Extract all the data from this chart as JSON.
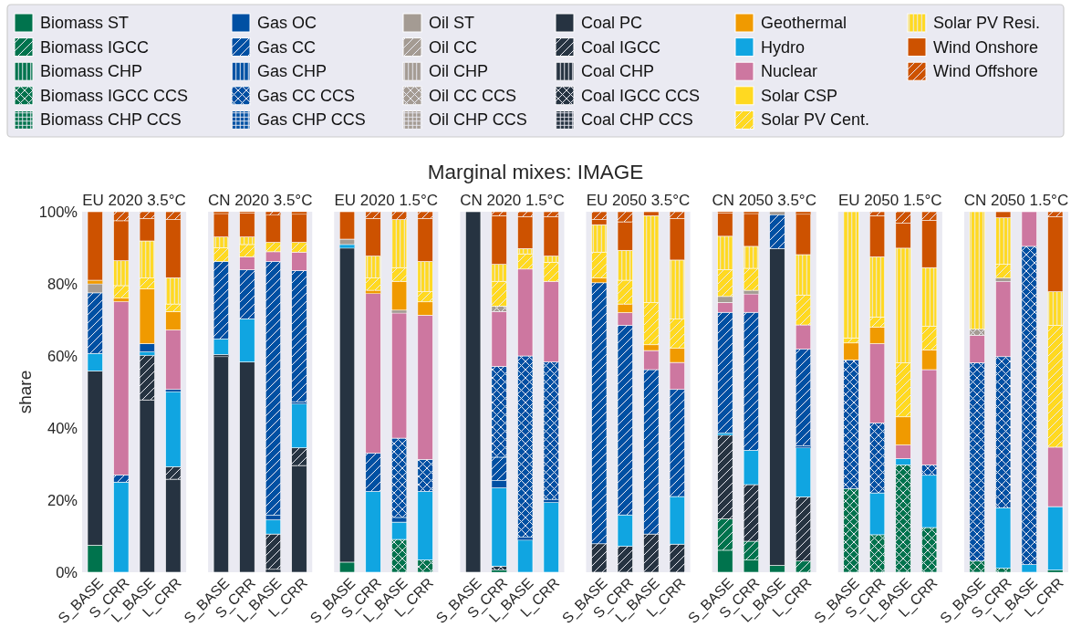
{
  "chart_data": [
    {
      "type": "bar",
      "stacked": true,
      "title": "EU 2020 3.5°C",
      "annotations": [
        "Marginal mixes: IMAGE"
      ],
      "ylabel": "share",
      "legend": "top",
      "categories": [
        "S_BASE",
        "S_CRR",
        "L_BASE",
        "L_CRR"
      ],
      "ylim": [
        0,
        100
      ],
      "yticks": [
        {
          "value": 0,
          "label": "0%"
        },
        {
          "value": 20,
          "label": "20%"
        },
        {
          "value": 40,
          "label": "40%"
        },
        {
          "value": 60,
          "label": "60%"
        },
        {
          "value": 80,
          "label": "80%"
        },
        {
          "value": 100,
          "label": "100%"
        }
      ],
      "series": [
        {
          "name": "Biomass ST",
          "color": "#00734d",
          "values": [
            7.5,
            0,
            0,
            0
          ]
        },
        {
          "name": "Biomass CHP",
          "color": "#00734d",
          "values": [
            0,
            0,
            0,
            0
          ]
        },
        {
          "name": "Biomass CHP CCS",
          "color": "#00734d",
          "values": [
            0,
            0,
            0,
            0
          ]
        },
        {
          "name": "Coal PC",
          "color": "#263341",
          "values": [
            48.3,
            0,
            47.8,
            25.8
          ]
        },
        {
          "name": "Coal IGCC",
          "color": "#263341",
          "values": [
            0,
            0,
            12.4,
            3.5
          ]
        },
        {
          "name": "Coal CHP",
          "color": "#263341",
          "values": [
            0,
            0,
            0,
            0
          ]
        },
        {
          "name": "Coal CHP CCS",
          "color": "#263341",
          "values": [
            0,
            0,
            0,
            0
          ]
        },
        {
          "name": "Hydro",
          "color": "#10a5e1",
          "values": [
            4.9,
            25,
            0.9,
            20.8
          ]
        },
        {
          "name": "Gas OC",
          "color": "#0050a3",
          "values": [
            0,
            0,
            2.3,
            0.6
          ]
        },
        {
          "name": "Gas CC",
          "color": "#0050a3",
          "values": [
            16.8,
            2,
            0,
            0
          ]
        },
        {
          "name": "Gas CHP",
          "color": "#0050a3",
          "values": [
            0,
            0,
            0,
            0
          ]
        },
        {
          "name": "Gas CHP CCS",
          "color": "#0050a3",
          "values": [
            0,
            0,
            0,
            0
          ]
        },
        {
          "name": "Nuclear",
          "color": "#cd77a0",
          "values": [
            0,
            48.1,
            0,
            16.5
          ]
        },
        {
          "name": "Oil ST",
          "color": "#a49b93",
          "values": [
            2.5,
            0,
            0,
            0
          ]
        },
        {
          "name": "Oil CC",
          "color": "#a49b93",
          "values": [
            0,
            0,
            0,
            0
          ]
        },
        {
          "name": "Oil CHP",
          "color": "#a49b93",
          "values": [
            0,
            0,
            0,
            0
          ]
        },
        {
          "name": "Oil CHP CCS",
          "color": "#a49b93",
          "values": [
            0,
            0,
            0,
            0
          ]
        },
        {
          "name": "Geothermal",
          "color": "#f09a00",
          "values": [
            1,
            1,
            15.2,
            5.1
          ]
        },
        {
          "name": "Solar CSP",
          "color": "#ffd921",
          "values": [
            0,
            0,
            0,
            0
          ]
        },
        {
          "name": "Solar PV Cent.",
          "color": "#ffd921",
          "values": [
            0,
            3.4,
            3,
            2.1
          ]
        },
        {
          "name": "Solar PV Resi.",
          "color": "#ffd921",
          "values": [
            0,
            6.9,
            10.3,
            7.3
          ]
        },
        {
          "name": "Wind Onshore",
          "color": "#cd5200",
          "values": [
            19,
            11.1,
            6.2,
            16.1
          ]
        },
        {
          "name": "Wind Offshore",
          "color": "#cd5200",
          "values": [
            0,
            2.5,
            1.9,
            2.2
          ]
        }
      ]
    },
    {
      "type": "bar",
      "stacked": true,
      "title": "CN 2020 3.5°C",
      "legend": "top",
      "tick_labels": "x",
      "categories": [
        "S_BASE",
        "S_CRR",
        "L_BASE",
        "L_CRR"
      ],
      "ylim": [
        0,
        100
      ],
      "series": [
        {
          "name": "Coal PC",
          "color": "#263341",
          "values": [
            59.8,
            58.3,
            0.8,
            29.6
          ]
        },
        {
          "name": "Coal IGCC",
          "color": "#263341",
          "values": [
            0.6,
            0,
            9.8,
            4.9
          ]
        },
        {
          "name": "Hydro",
          "color": "#10a5e1",
          "values": [
            4.3,
            12,
            3.9,
            12.2
          ]
        },
        {
          "name": "Gas OC",
          "color": "#0050a3",
          "values": [
            0,
            0,
            1.3,
            0.6
          ]
        },
        {
          "name": "Gas CC",
          "color": "#0050a3",
          "values": [
            21.5,
            13.6,
            70.4,
            36.4
          ]
        },
        {
          "name": "Nuclear",
          "color": "#cd77a0",
          "values": [
            0,
            3.6,
            2.7,
            5.1
          ]
        },
        {
          "name": "Solar PV Cent.",
          "color": "#ffd921",
          "values": [
            3.8,
            3.4,
            2.6,
            2.7
          ]
        },
        {
          "name": "Solar PV Resi.",
          "color": "#ffd921",
          "values": [
            3,
            2.1,
            0,
            0
          ]
        },
        {
          "name": "Wind Onshore",
          "color": "#cd5200",
          "values": [
            6.5,
            6.7,
            7.6,
            7.8
          ]
        },
        {
          "name": "Wind Offshore",
          "color": "#cd5200",
          "values": [
            0.5,
            0.3,
            0.9,
            0.7
          ]
        }
      ]
    },
    {
      "type": "bar",
      "stacked": true,
      "title": "EU 2020 1.5°C",
      "legend": "top",
      "tick_labels": "x",
      "categories": [
        "S_BASE",
        "S_CRR",
        "L_BASE",
        "L_CRR"
      ],
      "ylim": [
        0,
        100
      ],
      "series": [
        {
          "name": "Biomass ST",
          "color": "#00734d",
          "values": [
            2.8,
            0,
            0,
            0
          ]
        },
        {
          "name": "Biomass IGCC CCS",
          "color": "#00734d",
          "values": [
            0,
            0,
            9.1,
            3.4
          ]
        },
        {
          "name": "Coal PC",
          "color": "#263341",
          "values": [
            87.1,
            0,
            0,
            0
          ]
        },
        {
          "name": "Hydro",
          "color": "#10a5e1",
          "values": [
            1,
            22.4,
            4.8,
            19
          ]
        },
        {
          "name": "Gas OC",
          "color": "#0050a3",
          "values": [
            0,
            0,
            1.3,
            0
          ]
        },
        {
          "name": "Gas CC",
          "color": "#0050a3",
          "values": [
            0,
            10.6,
            0,
            0
          ]
        },
        {
          "name": "Gas CC CCS",
          "color": "#0050a3",
          "values": [
            0,
            0,
            22,
            8.9
          ]
        },
        {
          "name": "Nuclear",
          "color": "#cd77a0",
          "values": [
            0,
            44.3,
            34.7,
            40
          ]
        },
        {
          "name": "Oil ST",
          "color": "#a49b93",
          "values": [
            1.5,
            0,
            0.8,
            0
          ]
        },
        {
          "name": "Geothermal",
          "color": "#f09a00",
          "values": [
            0,
            0.9,
            8,
            3.7
          ]
        },
        {
          "name": "Solar PV Cent.",
          "color": "#ffd921",
          "values": [
            0,
            3.4,
            3.8,
            2.8
          ]
        },
        {
          "name": "Solar PV Resi.",
          "color": "#ffd921",
          "values": [
            0,
            6.1,
            13.3,
            8.4
          ]
        },
        {
          "name": "Wind Onshore",
          "color": "#cd5200",
          "values": [
            7.6,
            10.4,
            0,
            11.9
          ]
        },
        {
          "name": "Wind Offshore",
          "color": "#cd5200",
          "values": [
            0,
            1.9,
            2.2,
            1.9
          ]
        }
      ]
    },
    {
      "type": "bar",
      "stacked": true,
      "title": "CN 2020 1.5°C",
      "legend": "top",
      "tick_labels": "x",
      "categories": [
        "S_BASE",
        "S_CRR",
        "L_BASE",
        "L_CRR"
      ],
      "ylim": [
        0,
        100
      ],
      "series": [
        {
          "name": "Biomass IGCC CCS",
          "color": "#00734d",
          "values": [
            0,
            0.6,
            0,
            0
          ]
        },
        {
          "name": "Coal PC",
          "color": "#263341",
          "values": [
            100,
            0,
            0,
            0
          ]
        },
        {
          "name": "Coal IGCC CCS",
          "color": "#263341",
          "values": [
            0,
            1.1,
            0,
            0
          ]
        },
        {
          "name": "Hydro",
          "color": "#10a5e1",
          "values": [
            0,
            21.7,
            8.9,
            19.4
          ]
        },
        {
          "name": "Gas OC",
          "color": "#0050a3",
          "values": [
            0,
            2,
            0.8,
            0.8
          ]
        },
        {
          "name": "Gas CC",
          "color": "#0050a3",
          "values": [
            0,
            6.5,
            0,
            0
          ]
        },
        {
          "name": "Gas CC CCS",
          "color": "#0050a3",
          "values": [
            0,
            25.2,
            50.3,
            38.1
          ]
        },
        {
          "name": "Nuclear",
          "color": "#cd77a0",
          "values": [
            0,
            15.2,
            24.1,
            22.4
          ]
        },
        {
          "name": "Oil CC CCS",
          "color": "#a49b93",
          "values": [
            0,
            1.5,
            0,
            0
          ]
        },
        {
          "name": "Solar PV Cent.",
          "color": "#ffd921",
          "values": [
            0,
            6.9,
            4.2,
            5.3
          ]
        },
        {
          "name": "Solar PV Resi.",
          "color": "#ffd921",
          "values": [
            0,
            4.7,
            1.5,
            1.7
          ]
        },
        {
          "name": "Wind Onshore",
          "color": "#cd5200",
          "values": [
            0,
            13.5,
            8.8,
            10.9
          ]
        },
        {
          "name": "Wind Offshore",
          "color": "#cd5200",
          "values": [
            0,
            1.1,
            1.4,
            1.4
          ]
        }
      ]
    },
    {
      "type": "bar",
      "stacked": true,
      "title": "EU 2050 3.5°C",
      "legend": "top",
      "tick_labels": "x",
      "categories": [
        "S_BASE",
        "S_CRR",
        "L_BASE",
        "L_CRR"
      ],
      "ylim": [
        0,
        100
      ],
      "series": [
        {
          "name": "Coal IGCC",
          "color": "#263341",
          "values": [
            7.9,
            7.2,
            10.6,
            7.8
          ]
        },
        {
          "name": "Hydro",
          "color": "#10a5e1",
          "values": [
            0,
            8.7,
            0,
            13.2
          ]
        },
        {
          "name": "Gas CC",
          "color": "#0050a3",
          "values": [
            72.4,
            52.6,
            45.6,
            29.7
          ]
        },
        {
          "name": "Nuclear",
          "color": "#cd77a0",
          "values": [
            0,
            3.5,
            5.3,
            7.5
          ]
        },
        {
          "name": "Geothermal",
          "color": "#f09a00",
          "values": [
            1.3,
            2.4,
            1.6,
            3.9
          ]
        },
        {
          "name": "Solar PV Cent.",
          "color": "#ffd921",
          "values": [
            7.2,
            6.6,
            11.7,
            8.1
          ]
        },
        {
          "name": "Solar PV Resi.",
          "color": "#ffd921",
          "values": [
            7.6,
            8.3,
            24.1,
            16.4
          ]
        },
        {
          "name": "Wind Onshore",
          "color": "#cd5200",
          "values": [
            1.4,
            7.9,
            1.1,
            11.5
          ]
        },
        {
          "name": "Wind Offshore",
          "color": "#cd5200",
          "values": [
            2.2,
            2.8,
            0,
            1.9
          ]
        }
      ]
    },
    {
      "type": "bar",
      "stacked": true,
      "title": "CN 2050 3.5°C",
      "legend": "top",
      "tick_labels": "x",
      "categories": [
        "S_BASE",
        "S_CRR",
        "L_BASE",
        "L_CRR"
      ],
      "ylim": [
        0,
        100
      ],
      "series": [
        {
          "name": "Biomass ST",
          "color": "#00734d",
          "values": [
            6.1,
            3.4,
            1.9,
            0
          ]
        },
        {
          "name": "Biomass IGCC",
          "color": "#00734d",
          "values": [
            8.7,
            5.2,
            0,
            3.1
          ]
        },
        {
          "name": "Coal PC",
          "color": "#263341",
          "values": [
            0,
            0,
            87.9,
            0
          ]
        },
        {
          "name": "Coal IGCC",
          "color": "#263341",
          "values": [
            23.2,
            15.7,
            0,
            17.8
          ]
        },
        {
          "name": "Hydro",
          "color": "#10a5e1",
          "values": [
            0.6,
            9.5,
            0,
            13.6
          ]
        },
        {
          "name": "Gas OC",
          "color": "#0050a3",
          "values": [
            0,
            0,
            0,
            0.6
          ]
        },
        {
          "name": "Gas CC",
          "color": "#0050a3",
          "values": [
            33.5,
            38.3,
            9.4,
            26.8
          ]
        },
        {
          "name": "Nuclear",
          "color": "#cd77a0",
          "values": [
            2.7,
            5.1,
            0,
            6.7
          ]
        },
        {
          "name": "Oil ST",
          "color": "#a49b93",
          "values": [
            1.7,
            1,
            0.8,
            0
          ]
        },
        {
          "name": "Solar PV Cent.",
          "color": "#ffd921",
          "values": [
            7.4,
            6.1,
            0,
            8.3
          ]
        },
        {
          "name": "Solar PV Resi.",
          "color": "#ffd921",
          "values": [
            9.3,
            6.1,
            0,
            11.2
          ]
        },
        {
          "name": "Wind Onshore",
          "color": "#cd5200",
          "values": [
            6.5,
            9.1,
            0,
            11.2
          ]
        },
        {
          "name": "Wind Offshore",
          "color": "#cd5200",
          "values": [
            0.3,
            0.5,
            0,
            0.7
          ]
        }
      ]
    },
    {
      "type": "bar",
      "stacked": true,
      "title": "EU 2050 1.5°C",
      "legend": "top",
      "tick_labels": "x",
      "categories": [
        "S_BASE",
        "S_CRR",
        "L_BASE",
        "L_CRR"
      ],
      "ylim": [
        0,
        100
      ],
      "series": [
        {
          "name": "Biomass IGCC CCS",
          "color": "#00734d",
          "values": [
            23.2,
            10.4,
            29.8,
            12.4
          ]
        },
        {
          "name": "Hydro",
          "color": "#10a5e1",
          "values": [
            0,
            11.6,
            1.7,
            14.5
          ]
        },
        {
          "name": "Gas CC CCS",
          "color": "#0050a3",
          "values": [
            35.7,
            19.4,
            0,
            2.9
          ]
        },
        {
          "name": "Nuclear",
          "color": "#cd77a0",
          "values": [
            0,
            22,
            3.8,
            26.4
          ]
        },
        {
          "name": "Geothermal",
          "color": "#f09a00",
          "values": [
            4.7,
            4.6,
            7.8,
            5.5
          ]
        },
        {
          "name": "Solar PV Cent.",
          "color": "#ffd921",
          "values": [
            1.4,
            2.8,
            15,
            6.5
          ]
        },
        {
          "name": "Solar PV Resi.",
          "color": "#ffd921",
          "values": [
            35,
            16.7,
            31.8,
            16.3
          ]
        },
        {
          "name": "Wind Onshore",
          "color": "#cd5200",
          "values": [
            0,
            11.4,
            6.9,
            13.1
          ]
        },
        {
          "name": "Wind Offshore",
          "color": "#cd5200",
          "values": [
            0,
            1.1,
            3.2,
            2.4
          ]
        }
      ]
    },
    {
      "type": "bar",
      "stacked": true,
      "title": "CN 2050 1.5°C",
      "legend": "top",
      "tick_labels": "x",
      "categories": [
        "S_BASE",
        "S_CRR",
        "L_BASE",
        "L_CRR"
      ],
      "ylim": [
        0,
        100
      ],
      "series": [
        {
          "name": "Biomass IGCC CCS",
          "color": "#00734d",
          "values": [
            3.1,
            1.1,
            0,
            0.6
          ]
        },
        {
          "name": "Hydro",
          "color": "#10a5e1",
          "values": [
            0,
            16.8,
            2.1,
            17.6
          ]
        },
        {
          "name": "Gas CC CCS",
          "color": "#0050a3",
          "values": [
            55,
            41.9,
            88.3,
            0
          ]
        },
        {
          "name": "Nuclear",
          "color": "#cd77a0",
          "values": [
            7.6,
            20.9,
            9.6,
            16.5
          ]
        },
        {
          "name": "Oil ST",
          "color": "#a49b93",
          "values": [
            0,
            0.9,
            0,
            0
          ]
        },
        {
          "name": "Oil CC CCS",
          "color": "#a49b93",
          "values": [
            1.7,
            0,
            0,
            0
          ]
        },
        {
          "name": "Solar PV Cent.",
          "color": "#ffd921",
          "values": [
            0,
            3.8,
            0,
            33.8
          ]
        },
        {
          "name": "Solar PV Resi.",
          "color": "#ffd921",
          "values": [
            32.6,
            12.9,
            0,
            9.3
          ]
        },
        {
          "name": "Wind Onshore",
          "color": "#cd5200",
          "values": [
            0,
            1.7,
            0,
            20.8
          ]
        },
        {
          "name": "Wind Offshore",
          "color": "#cd5200",
          "values": [
            0,
            0,
            0,
            1.4
          ]
        }
      ]
    }
  ]
}
